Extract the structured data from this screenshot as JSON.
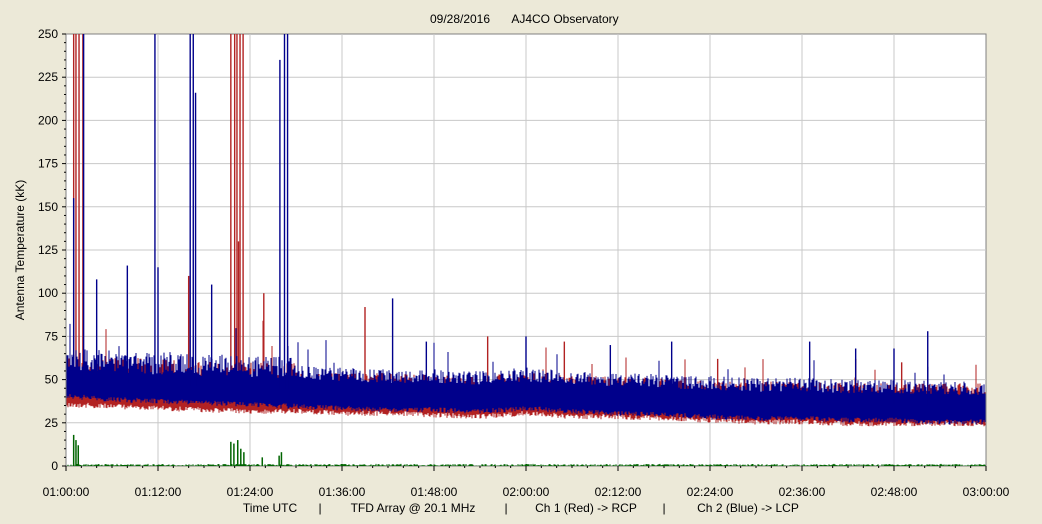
{
  "chart_data": {
    "type": "line",
    "title_date": "09/28/2016",
    "title_station": "AJ4CO Observatory",
    "ylabel": "Antenna Temperature (kK)",
    "xlabel_parts": [
      "Time UTC",
      "|",
      "TFD Array @ 20.1 MHz",
      "|",
      "Ch 1 (Red) -> RCP",
      "|",
      "Ch 2 (Blue)  -> LCP"
    ],
    "ylim": [
      0,
      250
    ],
    "y_ticks": [
      "0",
      "25",
      "50",
      "75",
      "100",
      "125",
      "150",
      "175",
      "200",
      "225",
      "250"
    ],
    "x_range_minutes": [
      0,
      120
    ],
    "x_ticks": [
      "01:00:00",
      "01:12:00",
      "01:24:00",
      "01:36:00",
      "01:48:00",
      "02:00:00",
      "02:12:00",
      "02:24:00",
      "02:36:00",
      "02:48:00",
      "03:00:00"
    ],
    "grid": true,
    "colors": {
      "rcp": "#b22222",
      "lcp": "#00008b",
      "diff": "#006400",
      "grid": "#c8c8c8",
      "plot_bg": "#ffffff",
      "page_bg": "#ece9d8"
    },
    "series": [
      {
        "name": "Ch 1 (Red) -> RCP",
        "baseline_x_minutes": [
          0,
          6,
          12,
          18,
          24,
          30,
          36,
          42,
          48,
          54,
          60,
          66,
          72,
          78,
          84,
          90,
          96,
          102,
          108,
          114,
          120
        ],
        "baseline_y": [
          45,
          44,
          43,
          42,
          41,
          41,
          40,
          40,
          39,
          38,
          40,
          38,
          38,
          37,
          36,
          35,
          35,
          34,
          34,
          34,
          34
        ],
        "spikes": [
          [
            1.0,
            250
          ],
          [
            1.3,
            250
          ],
          [
            1.7,
            250
          ],
          [
            2.2,
            250
          ],
          [
            21.5,
            250
          ],
          [
            22.0,
            250
          ],
          [
            22.3,
            250
          ],
          [
            22.7,
            250
          ],
          [
            23.1,
            250
          ],
          [
            16.0,
            110
          ],
          [
            22.5,
            130
          ],
          [
            25.8,
            100
          ],
          [
            39.0,
            92
          ],
          [
            55.0,
            75
          ],
          [
            65.0,
            72
          ],
          [
            85.0,
            62
          ],
          [
            103.0,
            62
          ],
          [
            109.0,
            60
          ]
        ]
      },
      {
        "name": "Ch 2 (Blue)  -> LCP",
        "baseline_x_minutes": [
          0,
          6,
          12,
          18,
          24,
          30,
          36,
          42,
          48,
          54,
          60,
          66,
          72,
          78,
          84,
          90,
          96,
          102,
          108,
          114,
          120
        ],
        "baseline_y": [
          50,
          48,
          47,
          46,
          45,
          44,
          43,
          42,
          42,
          41,
          43,
          41,
          40,
          39,
          38,
          37,
          37,
          36,
          36,
          35,
          35
        ],
        "spikes": [
          [
            1.0,
            155
          ],
          [
            2.3,
            250
          ],
          [
            4.0,
            108
          ],
          [
            8.0,
            116
          ],
          [
            11.6,
            250
          ],
          [
            12.0,
            115
          ],
          [
            16.2,
            250
          ],
          [
            16.6,
            250
          ],
          [
            16.9,
            216
          ],
          [
            19.0,
            105
          ],
          [
            27.9,
            235
          ],
          [
            28.5,
            250
          ],
          [
            28.9,
            250
          ],
          [
            42.6,
            97
          ],
          [
            47.0,
            72
          ],
          [
            60.0,
            75
          ],
          [
            71.0,
            70
          ],
          [
            79.0,
            72
          ],
          [
            97.0,
            72
          ],
          [
            103.0,
            68
          ],
          [
            108.0,
            68
          ],
          [
            112.4,
            78
          ]
        ]
      },
      {
        "name": "",
        "baseline_x_minutes": [
          0,
          120
        ],
        "baseline_y": [
          1,
          1
        ],
        "spikes": [
          [
            1.0,
            18
          ],
          [
            1.3,
            15
          ],
          [
            1.6,
            12
          ],
          [
            21.5,
            14
          ],
          [
            21.9,
            13
          ],
          [
            22.4,
            15
          ],
          [
            22.8,
            10
          ],
          [
            23.2,
            8
          ],
          [
            27.8,
            6
          ],
          [
            28.1,
            8
          ],
          [
            25.6,
            5
          ]
        ]
      }
    ]
  }
}
